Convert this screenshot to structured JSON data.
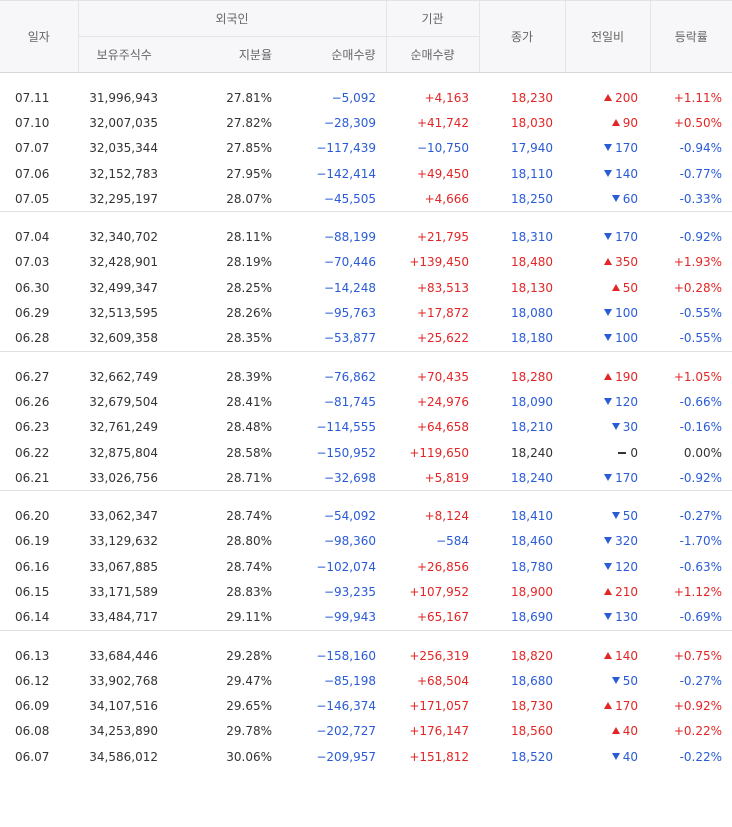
{
  "headers": {
    "date": "일자",
    "foreign_group": "외국인",
    "institution_group": "기관",
    "foreign_holdings": "보유주식수",
    "foreign_ratio": "지분율",
    "foreign_net": "순매수량",
    "inst_net": "순매수량",
    "close": "종가",
    "change": "전일비",
    "rate": "등락률"
  },
  "groups": [
    {
      "rows": [
        {
          "date": "07.11",
          "holdings": "31,996,943",
          "ratio": "27.81%",
          "fnet": "−5,092",
          "inet": "+4,163",
          "close": "18,230",
          "dir": "up",
          "change": "200",
          "rate": "+1.11%"
        },
        {
          "date": "07.10",
          "holdings": "32,007,035",
          "ratio": "27.82%",
          "fnet": "−28,309",
          "inet": "+41,742",
          "close": "18,030",
          "dir": "up",
          "change": "90",
          "rate": "+0.50%"
        },
        {
          "date": "07.07",
          "holdings": "32,035,344",
          "ratio": "27.85%",
          "fnet": "−117,439",
          "inet": "−10,750",
          "close": "17,940",
          "dir": "dn",
          "change": "170",
          "rate": "-0.94%"
        },
        {
          "date": "07.06",
          "holdings": "32,152,783",
          "ratio": "27.95%",
          "fnet": "−142,414",
          "inet": "+49,450",
          "close": "18,110",
          "dir": "dn",
          "change": "140",
          "rate": "-0.77%"
        },
        {
          "date": "07.05",
          "holdings": "32,295,197",
          "ratio": "28.07%",
          "fnet": "−45,505",
          "inet": "+4,666",
          "close": "18,250",
          "dir": "dn",
          "change": "60",
          "rate": "-0.33%"
        }
      ]
    },
    {
      "rows": [
        {
          "date": "07.04",
          "holdings": "32,340,702",
          "ratio": "28.11%",
          "fnet": "−88,199",
          "inet": "+21,795",
          "close": "18,310",
          "dir": "dn",
          "change": "170",
          "rate": "-0.92%"
        },
        {
          "date": "07.03",
          "holdings": "32,428,901",
          "ratio": "28.19%",
          "fnet": "−70,446",
          "inet": "+139,450",
          "close": "18,480",
          "dir": "up",
          "change": "350",
          "rate": "+1.93%"
        },
        {
          "date": "06.30",
          "holdings": "32,499,347",
          "ratio": "28.25%",
          "fnet": "−14,248",
          "inet": "+83,513",
          "close": "18,130",
          "dir": "up",
          "change": "50",
          "rate": "+0.28%"
        },
        {
          "date": "06.29",
          "holdings": "32,513,595",
          "ratio": "28.26%",
          "fnet": "−95,763",
          "inet": "+17,872",
          "close": "18,080",
          "dir": "dn",
          "change": "100",
          "rate": "-0.55%"
        },
        {
          "date": "06.28",
          "holdings": "32,609,358",
          "ratio": "28.35%",
          "fnet": "−53,877",
          "inet": "+25,622",
          "close": "18,180",
          "dir": "dn",
          "change": "100",
          "rate": "-0.55%"
        }
      ]
    },
    {
      "rows": [
        {
          "date": "06.27",
          "holdings": "32,662,749",
          "ratio": "28.39%",
          "fnet": "−76,862",
          "inet": "+70,435",
          "close": "18,280",
          "dir": "up",
          "change": "190",
          "rate": "+1.05%"
        },
        {
          "date": "06.26",
          "holdings": "32,679,504",
          "ratio": "28.41%",
          "fnet": "−81,745",
          "inet": "+24,976",
          "close": "18,090",
          "dir": "dn",
          "change": "120",
          "rate": "-0.66%"
        },
        {
          "date": "06.23",
          "holdings": "32,761,249",
          "ratio": "28.48%",
          "fnet": "−114,555",
          "inet": "+64,658",
          "close": "18,210",
          "dir": "dn",
          "change": "30",
          "rate": "-0.16%"
        },
        {
          "date": "06.22",
          "holdings": "32,875,804",
          "ratio": "28.58%",
          "fnet": "−150,952",
          "inet": "+119,650",
          "close": "18,240",
          "dir": "nc",
          "change": "0",
          "rate": "0.00%"
        },
        {
          "date": "06.21",
          "holdings": "33,026,756",
          "ratio": "28.71%",
          "fnet": "−32,698",
          "inet": "+5,819",
          "close": "18,240",
          "dir": "dn",
          "change": "170",
          "rate": "-0.92%"
        }
      ]
    },
    {
      "rows": [
        {
          "date": "06.20",
          "holdings": "33,062,347",
          "ratio": "28.74%",
          "fnet": "−54,092",
          "inet": "+8,124",
          "close": "18,410",
          "dir": "dn",
          "change": "50",
          "rate": "-0.27%"
        },
        {
          "date": "06.19",
          "holdings": "33,129,632",
          "ratio": "28.80%",
          "fnet": "−98,360",
          "inet": "−584",
          "close": "18,460",
          "dir": "dn",
          "change": "320",
          "rate": "-1.70%"
        },
        {
          "date": "06.16",
          "holdings": "33,067,885",
          "ratio": "28.74%",
          "fnet": "−102,074",
          "inet": "+26,856",
          "close": "18,780",
          "dir": "dn",
          "change": "120",
          "rate": "-0.63%"
        },
        {
          "date": "06.15",
          "holdings": "33,171,589",
          "ratio": "28.83%",
          "fnet": "−93,235",
          "inet": "+107,952",
          "close": "18,900",
          "dir": "up",
          "change": "210",
          "rate": "+1.12%"
        },
        {
          "date": "06.14",
          "holdings": "33,484,717",
          "ratio": "29.11%",
          "fnet": "−99,943",
          "inet": "+65,167",
          "close": "18,690",
          "dir": "dn",
          "change": "130",
          "rate": "-0.69%"
        }
      ]
    },
    {
      "rows": [
        {
          "date": "06.13",
          "holdings": "33,684,446",
          "ratio": "29.28%",
          "fnet": "−158,160",
          "inet": "+256,319",
          "close": "18,820",
          "dir": "up",
          "change": "140",
          "rate": "+0.75%"
        },
        {
          "date": "06.12",
          "holdings": "33,902,768",
          "ratio": "29.47%",
          "fnet": "−85,198",
          "inet": "+68,504",
          "close": "18,680",
          "dir": "dn",
          "change": "50",
          "rate": "-0.27%"
        },
        {
          "date": "06.09",
          "holdings": "34,107,516",
          "ratio": "29.65%",
          "fnet": "−146,374",
          "inet": "+171,057",
          "close": "18,730",
          "dir": "up",
          "change": "170",
          "rate": "+0.92%"
        },
        {
          "date": "06.08",
          "holdings": "34,253,890",
          "ratio": "29.78%",
          "fnet": "−202,727",
          "inet": "+176,147",
          "close": "18,560",
          "dir": "up",
          "change": "40",
          "rate": "+0.22%"
        },
        {
          "date": "06.07",
          "holdings": "34,586,012",
          "ratio": "30.06%",
          "fnet": "−209,957",
          "inet": "+151,812",
          "close": "18,520",
          "dir": "dn",
          "change": "40",
          "rate": "-0.22%"
        }
      ]
    }
  ]
}
